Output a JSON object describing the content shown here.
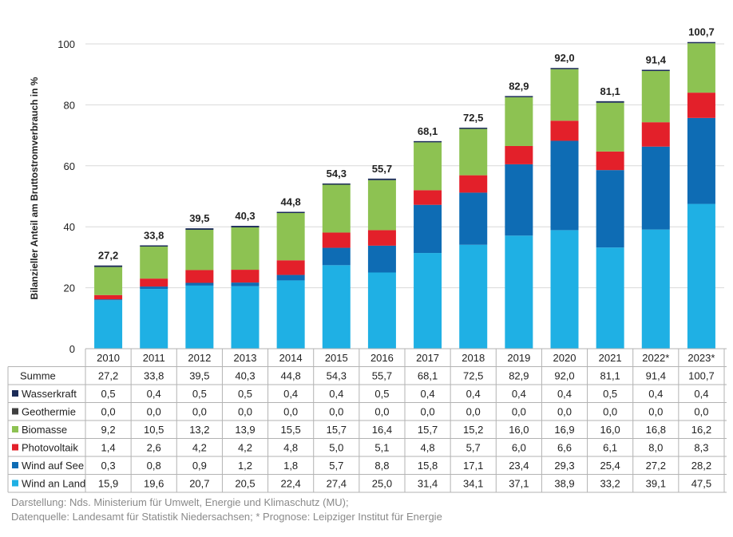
{
  "chart_data": {
    "type": "bar",
    "stacked": true,
    "ylabel": "Bilanzieller Anteil am Bruttostromverbrauch in %",
    "ylim": [
      0,
      100
    ],
    "yticks": [
      0,
      20,
      40,
      60,
      80,
      100
    ],
    "grid": true,
    "legend": "table-left",
    "categories": [
      "2010",
      "2011",
      "2012",
      "2013",
      "2014",
      "2015",
      "2016",
      "2017",
      "2018",
      "2019",
      "2020",
      "2021",
      "2022*",
      "2023*"
    ],
    "totals": [
      27.2,
      33.8,
      39.5,
      40.3,
      44.8,
      54.3,
      55.7,
      68.1,
      72.5,
      82.9,
      92.0,
      81.1,
      91.4,
      100.7
    ],
    "total_labels": [
      "27,2",
      "33,8",
      "39,5",
      "40,3",
      "44,8",
      "54,3",
      "55,7",
      "68,1",
      "72,5",
      "82,9",
      "92,0",
      "81,1",
      "91,4",
      "100,7"
    ],
    "summe_label": "Summe",
    "summe_values": [
      "27,2",
      "33,8",
      "39,5",
      "40,3",
      "44,8",
      "54,3",
      "55,7",
      "68,1",
      "72,5",
      "82,9",
      "92,0",
      "81,1",
      "91,4",
      "100,7"
    ],
    "series": [
      {
        "name": "Wind an Land",
        "color": "#1fb0e4",
        "values": [
          15.9,
          19.6,
          20.7,
          20.5,
          22.4,
          27.4,
          25.0,
          31.4,
          34.1,
          37.1,
          38.9,
          33.2,
          39.1,
          47.5
        ],
        "labels": [
          "15,9",
          "19,6",
          "20,7",
          "20,5",
          "22,4",
          "27,4",
          "25,0",
          "31,4",
          "34,1",
          "37,1",
          "38,9",
          "33,2",
          "39,1",
          "47,5"
        ]
      },
      {
        "name": "Wind auf See",
        "color": "#0e6cb4",
        "values": [
          0.3,
          0.8,
          0.9,
          1.2,
          1.8,
          5.7,
          8.8,
          15.8,
          17.1,
          23.4,
          29.3,
          25.4,
          27.2,
          28.2
        ],
        "labels": [
          "0,3",
          "0,8",
          "0,9",
          "1,2",
          "1,8",
          "5,7",
          "8,8",
          "15,8",
          "17,1",
          "23,4",
          "29,3",
          "25,4",
          "27,2",
          "28,2"
        ]
      },
      {
        "name": "Photovoltaik",
        "color": "#e3202a",
        "values": [
          1.4,
          2.6,
          4.2,
          4.2,
          4.8,
          5.0,
          5.1,
          4.8,
          5.7,
          6.0,
          6.6,
          6.1,
          8.0,
          8.3
        ],
        "labels": [
          "1,4",
          "2,6",
          "4,2",
          "4,2",
          "4,8",
          "5,0",
          "5,1",
          "4,8",
          "5,7",
          "6,0",
          "6,6",
          "6,1",
          "8,0",
          "8,3"
        ]
      },
      {
        "name": "Biomasse",
        "color": "#8dc252",
        "values": [
          9.2,
          10.5,
          13.2,
          13.9,
          15.5,
          15.7,
          16.4,
          15.7,
          15.2,
          16.0,
          16.9,
          16.0,
          16.8,
          16.2
        ],
        "labels": [
          "9,2",
          "10,5",
          "13,2",
          "13,9",
          "15,5",
          "15,7",
          "16,4",
          "15,7",
          "15,2",
          "16,0",
          "16,9",
          "16,0",
          "16,8",
          "16,2"
        ]
      },
      {
        "name": "Geothermie",
        "color": "#404040",
        "values": [
          0,
          0,
          0,
          0,
          0,
          0,
          0,
          0,
          0,
          0,
          0,
          0,
          0,
          0
        ],
        "labels": [
          "0,0",
          "0,0",
          "0,0",
          "0,0",
          "0,0",
          "0,0",
          "0,0",
          "0,0",
          "0,0",
          "0,0",
          "0,0",
          "0,0",
          "0,0",
          "0,0"
        ]
      },
      {
        "name": "Wasserkraft",
        "color": "#1b2b57",
        "values": [
          0.5,
          0.4,
          0.5,
          0.5,
          0.4,
          0.4,
          0.5,
          0.4,
          0.4,
          0.4,
          0.4,
          0.5,
          0.4,
          0.4
        ],
        "labels": [
          "0,5",
          "0,4",
          "0,5",
          "0,5",
          "0,4",
          "0,4",
          "0,5",
          "0,4",
          "0,4",
          "0,4",
          "0,4",
          "0,5",
          "0,4",
          "0,4"
        ]
      }
    ]
  },
  "footer": {
    "line1": "Darstellung: Nds. Ministerium für Umwelt, Energie und Klimaschutz (MU);",
    "line2": "Datenquelle: Landesamt für Statistik Niedersachsen; * Prognose: Leipziger Institut für Energie"
  }
}
